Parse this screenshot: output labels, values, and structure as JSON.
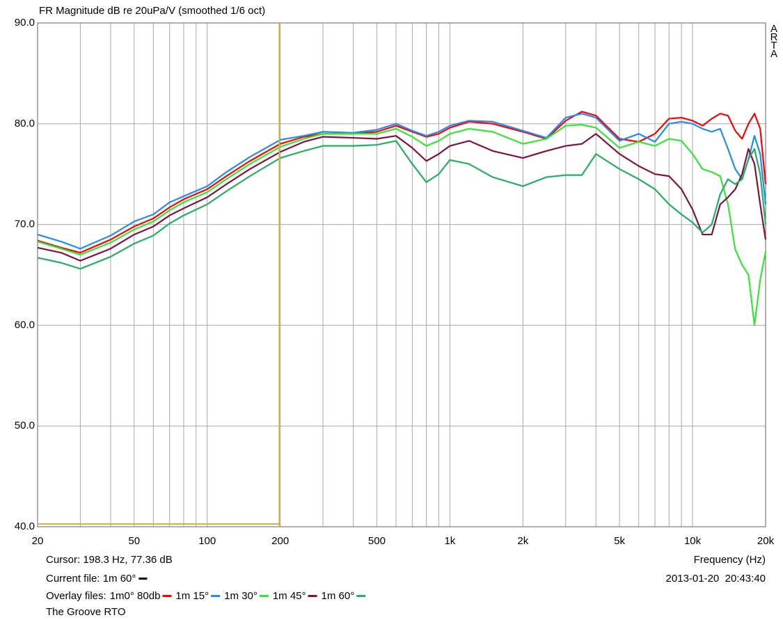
{
  "chart_data": {
    "type": "line",
    "title": "FR Magnitude dB re 20uPa/V (smoothed 1/6 oct)",
    "watermark": "ARTA",
    "x_label": "Frequency (Hz)",
    "x_log": true,
    "grid": true,
    "xlim": [
      20,
      20000
    ],
    "ylim": [
      40,
      90
    ],
    "xticks": [
      20,
      50,
      100,
      200,
      500,
      {
        "value": 1000,
        "label": "1k"
      },
      {
        "value": 2000,
        "label": "2k"
      },
      {
        "value": 5000,
        "label": "5k"
      },
      {
        "value": 10000,
        "label": "10k"
      },
      {
        "value": 20000,
        "label": "20k"
      }
    ],
    "xminor": [
      30,
      40,
      60,
      70,
      80,
      90,
      300,
      400,
      600,
      700,
      800,
      900,
      3000,
      4000,
      6000,
      7000,
      8000,
      9000
    ],
    "yticks": [
      {
        "value": 40,
        "label": "40.0"
      },
      {
        "value": 50,
        "label": "50.0"
      },
      {
        "value": 60,
        "label": "60.0"
      },
      {
        "value": 70,
        "label": "70.0"
      },
      {
        "value": 80,
        "label": "80.0"
      },
      {
        "value": 90,
        "label": "90.0"
      }
    ],
    "cursor": {
      "x": 198.3,
      "y": 77.36,
      "label": "Cursor: 198.3 Hz, 77.36 dB",
      "color": "#c8b448"
    },
    "current_file": {
      "label": "Current file: 1m 60°",
      "color": "#000000"
    },
    "overlay_label": "Overlay files:",
    "timestamp": "2013-01-20  20:43:40",
    "footer": "The Groove RTO",
    "x": [
      20,
      25,
      30,
      40,
      50,
      60,
      70,
      80,
      100,
      120,
      150,
      200,
      250,
      300,
      400,
      500,
      600,
      700,
      800,
      900,
      1000,
      1200,
      1500,
      2000,
      2500,
      3000,
      3500,
      4000,
      5000,
      6000,
      7000,
      8000,
      9000,
      10000,
      11000,
      12000,
      13000,
      14000,
      15000,
      16000,
      17000,
      18000,
      19000,
      20000
    ],
    "series": [
      {
        "name": "1m0° 80db",
        "color": "#ff0000",
        "values": [
          68.4,
          67.7,
          67.2,
          68.5,
          69.8,
          70.6,
          71.7,
          72.5,
          73.5,
          74.8,
          76.3,
          78.0,
          78.7,
          79.0,
          79.0,
          79.2,
          79.8,
          79.2,
          78.7,
          79.0,
          79.6,
          80.2,
          80.0,
          79.2,
          78.5,
          80.3,
          81.2,
          80.8,
          78.5,
          78.2,
          79.0,
          80.5,
          80.6,
          80.3,
          79.8,
          80.5,
          81.0,
          80.8,
          79.3,
          78.5,
          80.0,
          81.0,
          79.5,
          74.0
        ]
      },
      {
        "name": "1m 15°",
        "color": "#1e8cf0",
        "values": [
          69.0,
          68.3,
          67.6,
          68.9,
          70.3,
          71.0,
          72.2,
          72.8,
          73.8,
          75.2,
          76.7,
          78.4,
          78.8,
          79.2,
          79.1,
          79.4,
          80.0,
          79.3,
          78.8,
          79.2,
          79.8,
          80.3,
          80.2,
          79.3,
          78.6,
          80.6,
          81.0,
          80.6,
          78.3,
          79.0,
          78.2,
          80.0,
          80.2,
          80.0,
          79.5,
          79.2,
          79.5,
          77.5,
          75.5,
          74.5,
          76.5,
          78.8,
          77.0,
          72.0
        ]
      },
      {
        "name": "1m 30°",
        "color": "#33e633",
        "values": [
          68.3,
          67.6,
          67.0,
          68.2,
          69.5,
          70.3,
          71.4,
          72.2,
          73.2,
          74.5,
          76.0,
          77.7,
          78.5,
          79.0,
          79.0,
          79.0,
          79.5,
          78.7,
          77.8,
          78.3,
          79.0,
          79.5,
          79.2,
          78.0,
          78.5,
          79.8,
          79.9,
          79.6,
          77.6,
          78.2,
          77.8,
          78.5,
          78.3,
          77.0,
          75.5,
          75.2,
          74.8,
          72.0,
          67.5,
          66.0,
          65.0,
          60.0,
          64.5,
          67.3
        ]
      },
      {
        "name": "1m 45°",
        "color": "#80103f",
        "values": [
          67.7,
          67.2,
          66.4,
          67.6,
          69.0,
          69.8,
          70.9,
          71.6,
          72.7,
          74.0,
          75.5,
          77.2,
          78.2,
          78.7,
          78.6,
          78.5,
          78.8,
          77.6,
          76.3,
          77.0,
          77.8,
          78.3,
          77.3,
          76.6,
          77.3,
          77.8,
          78.0,
          79.0,
          77.0,
          75.8,
          75.0,
          74.8,
          73.5,
          71.5,
          69.0,
          69.0,
          72.0,
          72.7,
          73.5,
          75.0,
          77.5,
          76.0,
          72.0,
          68.5
        ]
      },
      {
        "name": "1m 60°",
        "color": "#20b060",
        "values": [
          66.7,
          66.2,
          65.6,
          66.8,
          68.1,
          68.9,
          70.1,
          70.9,
          72.0,
          73.3,
          74.8,
          76.6,
          77.3,
          77.8,
          77.8,
          77.9,
          78.3,
          76.0,
          74.2,
          75.0,
          76.4,
          76.0,
          74.7,
          73.8,
          74.7,
          74.9,
          74.9,
          77.0,
          75.5,
          74.5,
          73.5,
          72.0,
          71.0,
          70.2,
          69.2,
          70.0,
          73.0,
          74.5,
          74.0,
          74.5,
          76.5,
          77.5,
          75.0,
          70.0
        ]
      }
    ]
  }
}
